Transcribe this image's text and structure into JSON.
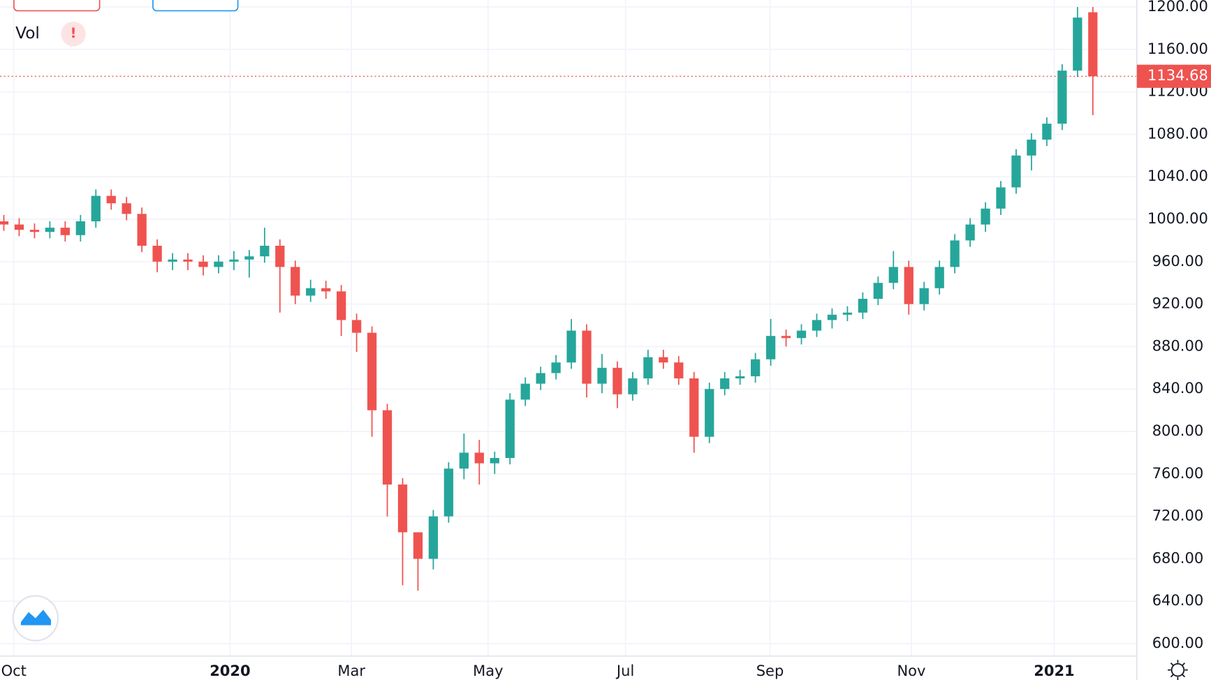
{
  "chart_data": {
    "type": "candlestick",
    "indicator_label": "Vol",
    "indicator_warning": "!",
    "up_color": "#26a69a",
    "down_color": "#ef5350",
    "grid": true,
    "xlim": [
      -0.25,
      73.87
    ],
    "xticks": [
      {
        "value": 0.65,
        "label": "Oct"
      },
      {
        "value": 14.75,
        "label": "2020"
      },
      {
        "value": 22.66,
        "label": "Mar"
      },
      {
        "value": 31.57,
        "label": "May"
      },
      {
        "value": 40.53,
        "label": "Jul"
      },
      {
        "value": 49.95,
        "label": "Sep"
      },
      {
        "value": 59.17,
        "label": "Nov"
      },
      {
        "value": 68.48,
        "label": "2021"
      }
    ],
    "ylim": [
      588.36,
      1206.55
    ],
    "yticks": [
      {
        "value": 600,
        "label": "600.00"
      },
      {
        "value": 640,
        "label": "640.00"
      },
      {
        "value": 680,
        "label": "680.00"
      },
      {
        "value": 720,
        "label": "720.00"
      },
      {
        "value": 760,
        "label": "760.00"
      },
      {
        "value": 800,
        "label": "800.00"
      },
      {
        "value": 840,
        "label": "840.00"
      },
      {
        "value": 880,
        "label": "880.00"
      },
      {
        "value": 920,
        "label": "920.00"
      },
      {
        "value": 960,
        "label": "960.00"
      },
      {
        "value": 1000,
        "label": "1000.00"
      },
      {
        "value": 1040,
        "label": "1040.00"
      },
      {
        "value": 1080,
        "label": "1080.00"
      },
      {
        "value": 1120,
        "label": "1120.00"
      },
      {
        "value": 1160,
        "label": "1160.00"
      },
      {
        "value": 1200,
        "label": "1200.00"
      }
    ],
    "open": [
      998,
      995,
      990,
      988,
      992,
      985,
      998,
      1022,
      1015,
      1005,
      975,
      960,
      962,
      960,
      955,
      960,
      962,
      965,
      975,
      955,
      928,
      935,
      932,
      905,
      893,
      820,
      750,
      705,
      680,
      720,
      765,
      780,
      770,
      775,
      830,
      845,
      855,
      865,
      895,
      845,
      860,
      835,
      850,
      870,
      865,
      850,
      795,
      840,
      850,
      852,
      868,
      890,
      888,
      895,
      905,
      910,
      912,
      925,
      940,
      955,
      920,
      935,
      955,
      980,
      995,
      1010,
      1030,
      1060,
      1075,
      1090,
      1140,
      1195
    ],
    "high": [
      1004,
      1001,
      996,
      998,
      998,
      1004,
      1028,
      1028,
      1021,
      1011,
      981,
      968,
      968,
      966,
      966,
      970,
      971,
      992,
      981,
      961,
      943,
      942,
      938,
      911,
      899,
      826,
      756,
      705,
      726,
      771,
      798,
      792,
      781,
      836,
      851,
      861,
      872,
      906,
      901,
      873,
      866,
      856,
      877,
      877,
      871,
      856,
      846,
      856,
      858,
      874,
      906,
      896,
      901,
      911,
      916,
      918,
      931,
      946,
      970,
      961,
      941,
      961,
      986,
      1001,
      1016,
      1036,
      1066,
      1081,
      1096,
      1146,
      1200,
      1200
    ],
    "low": [
      989,
      984,
      982,
      982,
      979,
      979,
      992,
      1009,
      999,
      969,
      950,
      952,
      952,
      947,
      949,
      952,
      945,
      959,
      912,
      920,
      922,
      925,
      890,
      875,
      795,
      720,
      655,
      650,
      670,
      714,
      755,
      750,
      760,
      769,
      824,
      839,
      849,
      859,
      832,
      836,
      822,
      829,
      844,
      859,
      844,
      780,
      789,
      834,
      844,
      846,
      862,
      880,
      882,
      889,
      897,
      904,
      906,
      919,
      934,
      910,
      914,
      929,
      949,
      974,
      988,
      1004,
      1024,
      1046,
      1069,
      1084,
      1134,
      1098
    ],
    "close": [
      995,
      990,
      988,
      992,
      985,
      998,
      1022,
      1015,
      1005,
      975,
      960,
      962,
      960,
      955,
      960,
      962,
      965,
      975,
      955,
      928,
      935,
      932,
      905,
      893,
      820,
      750,
      705,
      680,
      720,
      765,
      780,
      770,
      775,
      830,
      845,
      855,
      865,
      895,
      845,
      860,
      835,
      850,
      870,
      865,
      850,
      795,
      840,
      850,
      852,
      868,
      890,
      888,
      895,
      905,
      910,
      912,
      925,
      940,
      955,
      920,
      935,
      955,
      980,
      995,
      1010,
      1030,
      1060,
      1075,
      1090,
      1140,
      1190,
      1134.68
    ]
  }
}
